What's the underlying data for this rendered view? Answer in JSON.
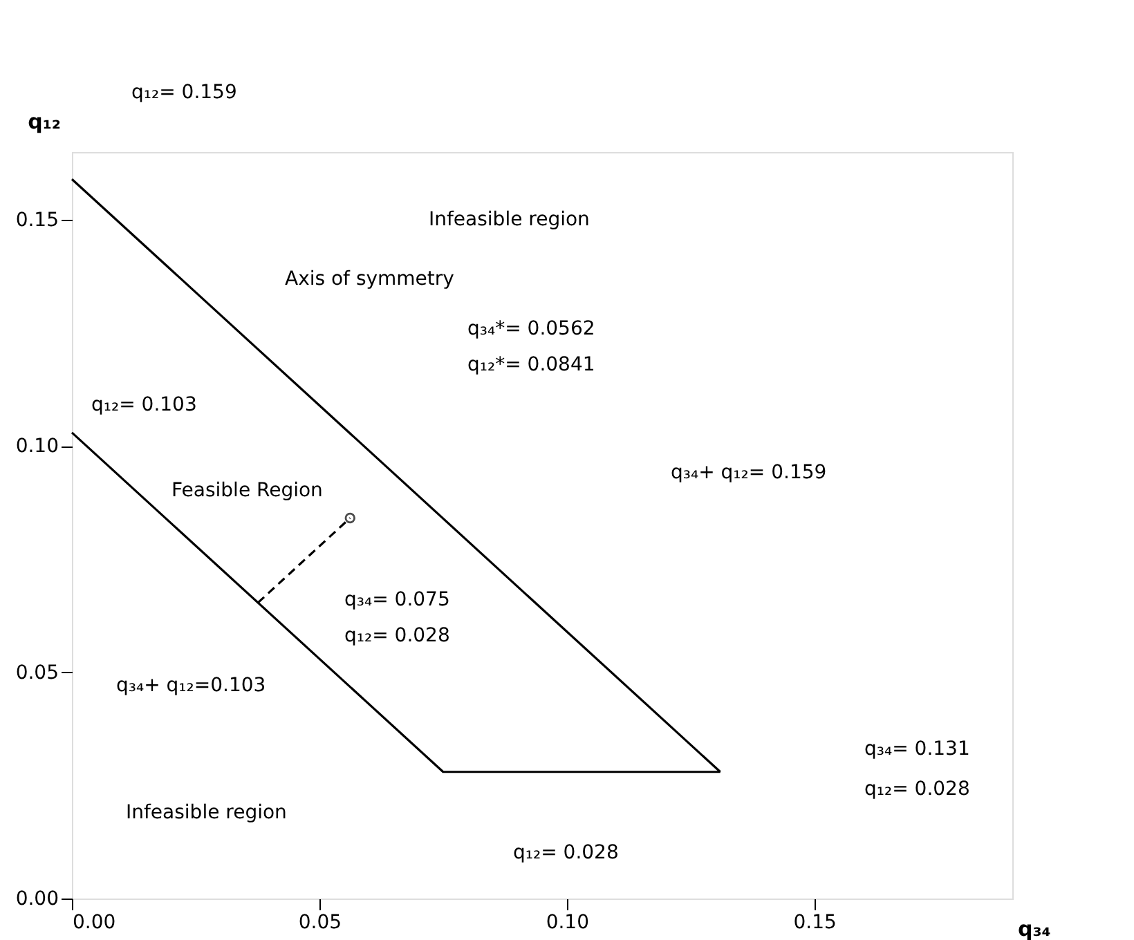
{
  "chart_data": {
    "type": "line",
    "xlabel": "q₃₄",
    "ylabel": "q₁₂",
    "xlim": [
      0,
      0.19
    ],
    "ylim": [
      0,
      0.165
    ],
    "xticks": [
      {
        "value": 0,
        "label": "0.00"
      },
      0.05,
      {
        "value": 0.1,
        "label": "0.10"
      },
      0.15
    ],
    "yticks": [
      {
        "value": 0,
        "label": "0.00"
      },
      0.05,
      {
        "value": 0.1,
        "label": "0.10"
      },
      0.15
    ],
    "grid": false,
    "series": [
      {
        "color": "#000000",
        "line_style": "solid",
        "x": [
          0,
          0.131
        ],
        "values": [
          0.159,
          0.028
        ]
      },
      {
        "color": "#000000",
        "line_style": "solid",
        "x": [
          0,
          0.075,
          0.131
        ],
        "values": [
          0.103,
          0.028,
          0.028
        ]
      },
      {
        "color": "#000000",
        "line_style": "dashed",
        "x": [
          0.0376,
          0.0562
        ],
        "values": [
          0.0654,
          0.0841
        ]
      },
      {
        "type": "scatter",
        "color": "#000000",
        "marker": "circle",
        "x": [
          0.0562
        ],
        "values": [
          0.0841
        ]
      }
    ],
    "annotations": [
      "q₁₂= 0.159",
      "Infeasible region",
      "Axis of symmetry",
      "q₃₄*= 0.0562",
      "q₁₂*= 0.0841",
      "q₁₂= 0.103",
      "Feasible Region",
      "q₃₄+ q₁₂= 0.159",
      "q₃₄= 0.075",
      "q₁₂= 0.028",
      "q₃₄+ q₁₂=0.103",
      "q₃₄= 0.131",
      "q₁₂= 0.028",
      "Infeasible region",
      "q₁₂= 0.028"
    ]
  }
}
